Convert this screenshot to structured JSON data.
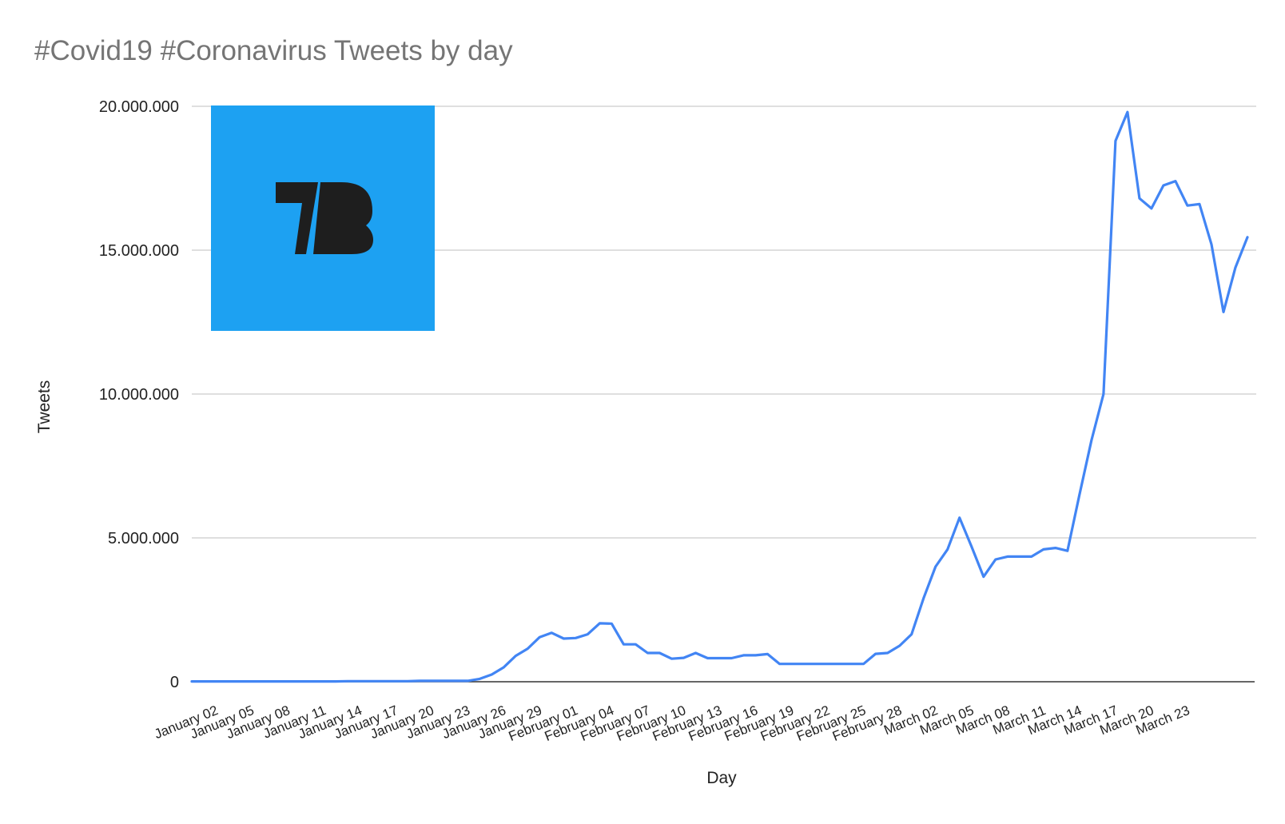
{
  "chart_data": {
    "type": "line",
    "title": "#Covid19 #Coronavirus Tweets by day",
    "xlabel": "Day",
    "ylabel": "Tweets",
    "ylim": [
      0,
      20000000
    ],
    "yticks": [
      {
        "value": 0,
        "label": "0"
      },
      {
        "value": 5000000,
        "label": "5.000.000"
      },
      {
        "value": 10000000,
        "label": "10.000.000"
      },
      {
        "value": 15000000,
        "label": "15.000.000"
      },
      {
        "value": 20000000,
        "label": "20.000.000"
      }
    ],
    "xtick_labels": [
      "January 02",
      "January 05",
      "January 08",
      "January 11",
      "January 14",
      "January 17",
      "January 20",
      "January 23",
      "January 26",
      "January 29",
      "February 01",
      "February 04",
      "February 07",
      "February 10",
      "February 13",
      "February 16",
      "February 19",
      "February 22",
      "February 25",
      "February 28",
      "March 02",
      "March 05",
      "March 08",
      "March 11",
      "March 14",
      "March 17",
      "March 20",
      "March 23"
    ],
    "grid": true,
    "legend": "none",
    "line_color": "#4285f4",
    "series": [
      {
        "x_start": "January 02",
        "x_end": "March 23",
        "values": [
          10000,
          10000,
          10000,
          10000,
          10000,
          10000,
          10000,
          10000,
          10000,
          10000,
          10000,
          10000,
          10000,
          20000,
          20000,
          20000,
          20000,
          20000,
          20000,
          30000,
          30000,
          30000,
          30000,
          30000,
          100000,
          250000,
          500000,
          900000,
          1150000,
          1550000,
          1700000,
          1500000,
          1520000,
          1650000,
          2030000,
          2020000,
          1300000,
          1300000,
          1000000,
          1000000,
          800000,
          830000,
          1000000,
          820000,
          820000,
          820000,
          920000,
          920000,
          960000,
          620000,
          620000,
          620000,
          620000,
          620000,
          620000,
          620000,
          620000,
          970000,
          1000000,
          1250000,
          1650000,
          2900000,
          4000000,
          4600000,
          5700000,
          4700000,
          3650000,
          4250000,
          4350000,
          4350000,
          4350000,
          4600000,
          4650000,
          4550000,
          6500000,
          8400000,
          10000000,
          18800000,
          19800000,
          16800000,
          16450000,
          17250000,
          17400000,
          16550000,
          16600000,
          15200000,
          12850000,
          14400000,
          15450000
        ]
      }
    ]
  },
  "logo": {
    "name": "TB",
    "bg_color": "#1da1f2",
    "glyph_color": "#1e1e1e"
  }
}
